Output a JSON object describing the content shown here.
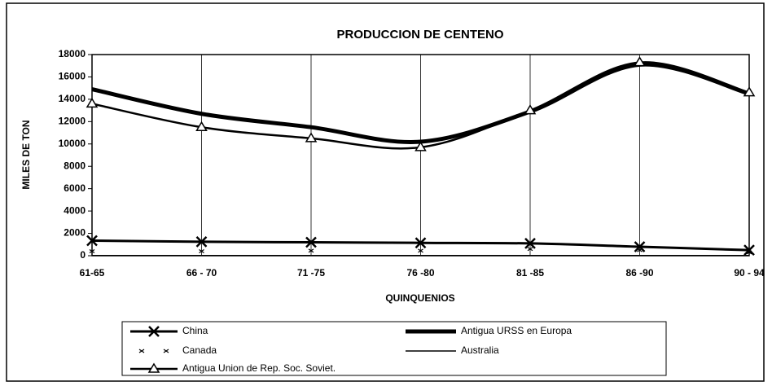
{
  "chart_data": {
    "type": "line",
    "title": "PRODUCCION DE CENTENO",
    "x_label": "QUINQUENIOS",
    "y_label": "MILES DE TON",
    "categories": [
      "61-65",
      "66 - 70",
      "71 -75",
      "76 -80",
      "81 -85",
      "86 -90",
      "90 - 94"
    ],
    "series": [
      {
        "name": "China",
        "color": "#000000",
        "marker": "x",
        "line_width": 3,
        "values": [
          1350,
          1250,
          1200,
          1150,
          1100,
          800,
          500
        ]
      },
      {
        "name": "Antigua URSS en Europa",
        "color": "#000000",
        "marker": "none",
        "line_width": 5,
        "values": [
          14900,
          12700,
          11500,
          10200,
          12900,
          17100,
          14500
        ]
      },
      {
        "name": "Canada",
        "color": "#000000",
        "marker": "small-x",
        "line_width": 0,
        "values": [
          400,
          400,
          450,
          450,
          600,
          500,
          300
        ]
      },
      {
        "name": "Australia",
        "color": "#000000",
        "marker": "none",
        "line_width": 1.5,
        "values": [
          20,
          20,
          20,
          20,
          20,
          20,
          20
        ]
      },
      {
        "name": "Antigua Union de Rep. Soc. Soviet.",
        "color": "#000000",
        "marker": "triangle",
        "line_width": 2.5,
        "values": [
          13600,
          11500,
          10500,
          9700,
          13000,
          17300,
          14600
        ]
      }
    ],
    "ylim": [
      0,
      18000
    ],
    "yticks": [
      0,
      2000,
      4000,
      6000,
      8000,
      10000,
      12000,
      14000,
      16000,
      18000
    ],
    "grid": true,
    "legend": "bottom"
  }
}
